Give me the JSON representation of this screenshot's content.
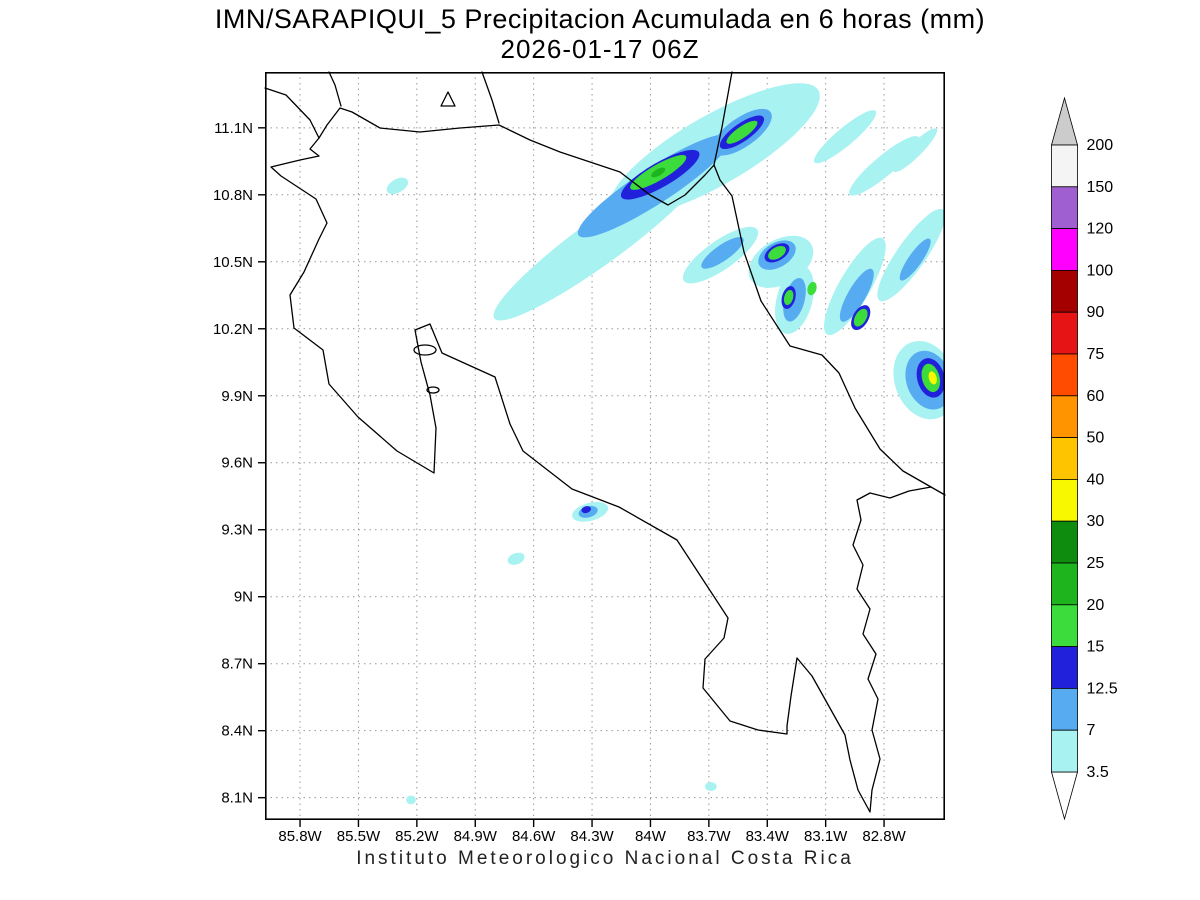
{
  "page": {
    "title_line1": "IMN/SARAPIQUI_5 Precipitacion Acumulada en 6 horas (mm)",
    "title_line2": "2026-01-17 06Z",
    "footer": "Instituto Meteorologico Nacional Costa Rica"
  },
  "chart_data": {
    "type": "heatmap",
    "subtype": "filled-contour-precipitation-map",
    "title": "IMN/SARAPIQUI_5 Precipitacion Acumulada en 6 horas (mm)",
    "valid_time": "2026-01-17 06Z",
    "units": "mm",
    "region": "Costa Rica",
    "grid": "dotted",
    "legend_position": "right",
    "xlabel_ticks": [
      "85.8W",
      "85.5W",
      "85.2W",
      "84.9W",
      "84.6W",
      "84.3W",
      "84W",
      "83.7W",
      "83.4W",
      "83.1W",
      "82.8W"
    ],
    "xlabel_values_w": [
      85.8,
      85.5,
      85.2,
      84.9,
      84.6,
      84.3,
      84.0,
      83.7,
      83.4,
      83.1,
      82.8
    ],
    "ylabel_ticks": [
      "11.1N",
      "10.8N",
      "10.5N",
      "10.2N",
      "9.9N",
      "9.6N",
      "9.3N",
      "9N",
      "8.7N",
      "8.4N",
      "8.1N"
    ],
    "ylabel_values_n": [
      11.1,
      10.8,
      10.5,
      10.2,
      9.9,
      9.6,
      9.3,
      9.0,
      8.7,
      8.4,
      8.1
    ],
    "extent": {
      "lon_west_w": 85.98,
      "lon_east_w": 82.487,
      "lat_south_n": 8.0,
      "lat_north_n": 11.35
    },
    "scale": {
      "levels_mm": [
        3.5,
        7,
        12.5,
        15,
        20,
        25,
        30,
        40,
        50,
        60,
        75,
        90,
        100,
        120,
        150,
        200
      ],
      "band_colors": [
        "#a8f2f2",
        "#57abf0",
        "#2121dc",
        "#3cdc3c",
        "#1eb41e",
        "#0e8c0e",
        "#f8f800",
        "#ffc400",
        "#ff9400",
        "#ff4c00",
        "#e61414",
        "#a50000",
        "#ff00ff",
        "#9f5fd0",
        "#f4f4f4"
      ],
      "over_color": "#cccccc",
      "under_color": "#ffffff"
    },
    "precip_features": [
      {
        "mm": 3.5,
        "lon_w": 84.26,
        "lat_n": 10.59,
        "w_deg": 1.34,
        "h_deg": 0.2,
        "rot_deg": -36
      },
      {
        "mm": 3.5,
        "lon_w": 83.67,
        "lat_n": 11.0,
        "w_deg": 1.23,
        "h_deg": 0.31,
        "rot_deg": -30
      },
      {
        "mm": 3.5,
        "lon_w": 83.28,
        "lat_n": 11.17,
        "w_deg": 0.29,
        "h_deg": 0.09,
        "rot_deg": -35
      },
      {
        "mm": 3.5,
        "lon_w": 83.0,
        "lat_n": 11.06,
        "w_deg": 0.41,
        "h_deg": 0.08,
        "rot_deg": -40
      },
      {
        "mm": 3.5,
        "lon_w": 82.8,
        "lat_n": 10.93,
        "w_deg": 0.46,
        "h_deg": 0.09,
        "rot_deg": -40
      },
      {
        "mm": 3.5,
        "lon_w": 82.64,
        "lat_n": 11.0,
        "w_deg": 0.31,
        "h_deg": 0.06,
        "rot_deg": -45
      },
      {
        "mm": 3.5,
        "lon_w": 83.64,
        "lat_n": 10.53,
        "w_deg": 0.46,
        "h_deg": 0.13,
        "rot_deg": -35
      },
      {
        "mm": 3.5,
        "lon_w": 83.33,
        "lat_n": 10.5,
        "w_deg": 0.36,
        "h_deg": 0.2,
        "rot_deg": -30
      },
      {
        "mm": 3.5,
        "lon_w": 83.26,
        "lat_n": 10.33,
        "w_deg": 0.36,
        "h_deg": 0.16,
        "rot_deg": -75
      },
      {
        "mm": 3.5,
        "lon_w": 82.95,
        "lat_n": 10.39,
        "w_deg": 0.57,
        "h_deg": 0.14,
        "rot_deg": -60
      },
      {
        "mm": 3.5,
        "lon_w": 82.66,
        "lat_n": 10.53,
        "w_deg": 0.57,
        "h_deg": 0.13,
        "rot_deg": -55
      },
      {
        "mm": 3.5,
        "lon_w": 82.59,
        "lat_n": 9.97,
        "w_deg": 0.31,
        "h_deg": 0.36,
        "rot_deg": -20
      },
      {
        "mm": 3.5,
        "lon_w": 85.3,
        "lat_n": 10.84,
        "w_deg": 0.12,
        "h_deg": 0.06,
        "rot_deg": -30
      },
      {
        "mm": 3.5,
        "lon_w": 84.31,
        "lat_n": 9.38,
        "w_deg": 0.19,
        "h_deg": 0.08,
        "rot_deg": -15
      },
      {
        "mm": 3.5,
        "lon_w": 84.69,
        "lat_n": 9.17,
        "w_deg": 0.09,
        "h_deg": 0.05,
        "rot_deg": -20
      },
      {
        "mm": 3.5,
        "lon_w": 83.69,
        "lat_n": 8.15,
        "w_deg": 0.06,
        "h_deg": 0.04,
        "rot_deg": 0
      },
      {
        "mm": 3.5,
        "lon_w": 85.23,
        "lat_n": 8.09,
        "w_deg": 0.05,
        "h_deg": 0.04,
        "rot_deg": 0
      },
      {
        "mm": 7,
        "lon_w": 83.98,
        "lat_n": 10.84,
        "w_deg": 0.93,
        "h_deg": 0.16,
        "rot_deg": -33
      },
      {
        "mm": 7,
        "lon_w": 83.53,
        "lat_n": 11.08,
        "w_deg": 0.36,
        "h_deg": 0.13,
        "rot_deg": -35
      },
      {
        "mm": 7,
        "lon_w": 83.63,
        "lat_n": 10.54,
        "w_deg": 0.26,
        "h_deg": 0.07,
        "rot_deg": -35
      },
      {
        "mm": 7,
        "lon_w": 83.35,
        "lat_n": 10.53,
        "w_deg": 0.21,
        "h_deg": 0.11,
        "rot_deg": -30
      },
      {
        "mm": 7,
        "lon_w": 83.26,
        "lat_n": 10.33,
        "w_deg": 0.23,
        "h_deg": 0.09,
        "rot_deg": -75
      },
      {
        "mm": 7,
        "lon_w": 82.94,
        "lat_n": 10.35,
        "w_deg": 0.31,
        "h_deg": 0.08,
        "rot_deg": -60
      },
      {
        "mm": 7,
        "lon_w": 82.64,
        "lat_n": 10.51,
        "w_deg": 0.26,
        "h_deg": 0.06,
        "rot_deg": -55
      },
      {
        "mm": 7,
        "lon_w": 82.57,
        "lat_n": 9.97,
        "w_deg": 0.23,
        "h_deg": 0.27,
        "rot_deg": -20
      },
      {
        "mm": 7,
        "lon_w": 84.32,
        "lat_n": 9.38,
        "w_deg": 0.1,
        "h_deg": 0.05,
        "rot_deg": -15
      },
      {
        "mm": 12.5,
        "lon_w": 83.95,
        "lat_n": 10.89,
        "w_deg": 0.46,
        "h_deg": 0.11,
        "rot_deg": -30
      },
      {
        "mm": 12.5,
        "lon_w": 83.53,
        "lat_n": 11.08,
        "w_deg": 0.27,
        "h_deg": 0.08,
        "rot_deg": -35
      },
      {
        "mm": 12.5,
        "lon_w": 83.35,
        "lat_n": 10.54,
        "w_deg": 0.14,
        "h_deg": 0.07,
        "rot_deg": -30
      },
      {
        "mm": 12.5,
        "lon_w": 83.29,
        "lat_n": 10.34,
        "w_deg": 0.12,
        "h_deg": 0.06,
        "rot_deg": -75
      },
      {
        "mm": 12.5,
        "lon_w": 82.92,
        "lat_n": 10.25,
        "w_deg": 0.14,
        "h_deg": 0.07,
        "rot_deg": -60
      },
      {
        "mm": 12.5,
        "lon_w": 82.56,
        "lat_n": 9.98,
        "w_deg": 0.14,
        "h_deg": 0.18,
        "rot_deg": -15
      },
      {
        "mm": 12.5,
        "lon_w": 84.33,
        "lat_n": 9.39,
        "w_deg": 0.05,
        "h_deg": 0.03,
        "rot_deg": -15
      },
      {
        "mm": 15,
        "lon_w": 83.96,
        "lat_n": 10.9,
        "w_deg": 0.33,
        "h_deg": 0.07,
        "rot_deg": -30
      },
      {
        "mm": 15,
        "lon_w": 83.53,
        "lat_n": 11.08,
        "w_deg": 0.19,
        "h_deg": 0.05,
        "rot_deg": -35
      },
      {
        "mm": 15,
        "lon_w": 83.35,
        "lat_n": 10.54,
        "w_deg": 0.1,
        "h_deg": 0.05,
        "rot_deg": -30
      },
      {
        "mm": 15,
        "lon_w": 83.29,
        "lat_n": 10.34,
        "w_deg": 0.08,
        "h_deg": 0.04,
        "rot_deg": -75
      },
      {
        "mm": 15,
        "lon_w": 83.17,
        "lat_n": 10.38,
        "w_deg": 0.07,
        "h_deg": 0.04,
        "rot_deg": -75
      },
      {
        "mm": 15,
        "lon_w": 82.92,
        "lat_n": 10.25,
        "w_deg": 0.1,
        "h_deg": 0.05,
        "rot_deg": -60
      },
      {
        "mm": 15,
        "lon_w": 82.56,
        "lat_n": 9.98,
        "w_deg": 0.09,
        "h_deg": 0.13,
        "rot_deg": -15
      },
      {
        "mm": 20,
        "lon_w": 83.96,
        "lat_n": 10.9,
        "w_deg": 0.08,
        "h_deg": 0.03,
        "rot_deg": -30
      },
      {
        "mm": 30,
        "lon_w": 82.55,
        "lat_n": 9.98,
        "w_deg": 0.04,
        "h_deg": 0.06,
        "rot_deg": -15
      }
    ]
  }
}
